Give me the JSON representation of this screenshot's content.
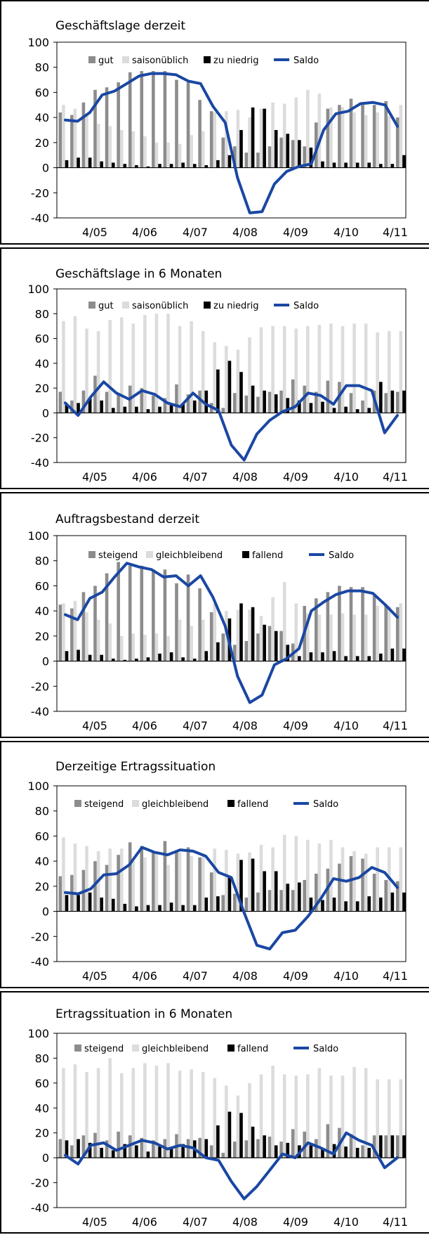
{
  "colors": {
    "s1": "#8c8c8c",
    "s2": "#dcdcdc",
    "s3": "#000000",
    "saldo": "#1a47a3"
  },
  "chart_data": [
    {
      "type": "bar",
      "title": "Geschäftslage derzeit",
      "legend": [
        "gut",
        "saisonüblich",
        "zu niedrig",
        "Saldo"
      ],
      "x_tick_labels": [
        "4/05",
        "4/06",
        "4/07",
        "4/08",
        "4/09",
        "4/10",
        "4/11"
      ],
      "y_tick_labels": [
        "100",
        "80",
        "60",
        "40",
        "20",
        "0",
        "-20",
        "-40"
      ],
      "ylim": [
        -40,
        100
      ],
      "series": [
        {
          "name": "gut",
          "values": [
            44,
            42,
            52,
            62,
            64,
            68,
            76,
            77,
            77,
            77,
            70,
            68,
            54,
            45,
            24,
            17,
            12,
            12,
            17,
            24,
            22,
            17,
            36,
            47,
            50,
            55,
            50,
            50,
            53,
            40
          ]
        },
        {
          "name": "saisonüblich",
          "values": [
            50,
            47,
            43,
            35,
            33,
            30,
            29,
            25,
            20,
            20,
            19,
            26,
            29,
            44,
            45,
            46,
            40,
            47,
            52,
            51,
            56,
            62,
            59,
            48,
            48,
            44,
            42,
            44,
            41,
            50
          ]
        },
        {
          "name": "zu niedrig",
          "values": [
            6,
            8,
            8,
            5,
            4,
            3,
            2,
            1,
            3,
            3,
            4,
            3,
            2,
            6,
            10,
            30,
            48,
            47,
            30,
            27,
            22,
            16,
            5,
            4,
            4,
            4,
            4,
            3,
            3,
            10
          ]
        },
        {
          "name": "Saldo",
          "values": [
            38,
            37,
            44,
            58,
            61,
            67,
            73,
            75,
            75,
            74,
            69,
            67,
            49,
            36,
            -8,
            -36,
            -35,
            -13,
            -3,
            1,
            3,
            30,
            43,
            45,
            51,
            52,
            50,
            33
          ]
        }
      ]
    },
    {
      "type": "bar",
      "title": "Geschäftslage in 6 Monaten",
      "legend": [
        "gut",
        "saisonüblich",
        "zu niedrig",
        "Saldo"
      ],
      "x_tick_labels": [
        "4/05",
        "4/06",
        "4/07",
        "4/08",
        "4/09",
        "4/10",
        "4/11"
      ],
      "y_tick_labels": [
        "100",
        "80",
        "60",
        "40",
        "20",
        "0",
        "-20",
        "-40"
      ],
      "ylim": [
        -40,
        100
      ],
      "series": [
        {
          "name": "gut",
          "values": [
            17,
            10,
            18,
            30,
            17,
            15,
            22,
            20,
            14,
            12,
            23,
            15,
            18,
            8,
            4,
            16,
            14,
            13,
            17,
            18,
            27,
            22,
            17,
            26,
            25,
            16,
            10,
            18,
            16,
            17
          ]
        },
        {
          "name": "saisonüblich",
          "values": [
            74,
            78,
            68,
            66,
            75,
            77,
            72,
            79,
            80,
            80,
            70,
            74,
            66,
            57,
            54,
            51,
            61,
            69,
            70,
            70,
            68,
            70,
            71,
            72,
            70,
            72,
            72,
            65,
            66,
            66
          ]
        },
        {
          "name": "zu niedrig",
          "values": [
            7,
            8,
            12,
            10,
            4,
            5,
            5,
            3,
            5,
            7,
            7,
            10,
            18,
            35,
            42,
            33,
            22,
            18,
            15,
            12,
            10,
            8,
            9,
            4,
            5,
            3,
            4,
            25,
            18,
            18
          ]
        },
        {
          "name": "Saldo",
          "values": [
            8,
            -2,
            13,
            25,
            16,
            11,
            18,
            15,
            8,
            5,
            16,
            7,
            2,
            -26,
            -38,
            -17,
            -6,
            1,
            5,
            16,
            14,
            7,
            22,
            22,
            18,
            -16,
            -2
          ]
        }
      ]
    },
    {
      "type": "bar",
      "title": "Auftragsbestand derzeit",
      "legend": [
        "steigend",
        "gleichbleibend",
        "fallend",
        "Saldo"
      ],
      "x_tick_labels": [
        "4/05",
        "4/06",
        "4/07",
        "4/08",
        "4/09",
        "4/10",
        "4/11"
      ],
      "y_tick_labels": [
        "100",
        "80",
        "60",
        "40",
        "20",
        "0",
        "-20",
        "-40"
      ],
      "ylim": [
        -40,
        100
      ],
      "series": [
        {
          "name": "steigend",
          "values": [
            45,
            42,
            55,
            60,
            70,
            79,
            76,
            76,
            73,
            73,
            62,
            69,
            58,
            39,
            22,
            13,
            16,
            22,
            28,
            24,
            14,
            44,
            50,
            55,
            60,
            59,
            59,
            52,
            45,
            43
          ]
        },
        {
          "name": "gleichbleibend",
          "values": [
            46,
            48,
            39,
            33,
            30,
            20,
            22,
            21,
            22,
            20,
            33,
            28,
            33,
            46,
            40,
            41,
            41,
            36,
            51,
            63,
            46,
            38,
            37,
            37,
            38,
            37,
            37,
            44,
            44,
            46
          ]
        },
        {
          "name": "fallend",
          "values": [
            8,
            9,
            5,
            5,
            2,
            1,
            2,
            3,
            6,
            7,
            3,
            2,
            8,
            15,
            34,
            46,
            43,
            29,
            24,
            13,
            4,
            7,
            7,
            8,
            4,
            4,
            4,
            6,
            10,
            10
          ]
        },
        {
          "name": "Saldo",
          "values": [
            37,
            33,
            50,
            55,
            67,
            78,
            75,
            73,
            67,
            68,
            60,
            68,
            51,
            28,
            -12,
            -33,
            -27,
            -3,
            2,
            10,
            40,
            47,
            53,
            56,
            56,
            54,
            45,
            35
          ]
        }
      ]
    },
    {
      "type": "bar",
      "title": "Derzeitige Ertragssituation",
      "legend": [
        "steigend",
        "gleichbleibend",
        "fallend",
        "Saldo"
      ],
      "x_tick_labels": [
        "4/05",
        "4/06",
        "4/07",
        "4/08",
        "4/09",
        "4/10",
        "4/11"
      ],
      "y_tick_labels": [
        "100",
        "80",
        "60",
        "40",
        "20",
        "0",
        "-20",
        "-40"
      ],
      "ylim": [
        -40,
        100
      ],
      "series": [
        {
          "name": "steigend",
          "values": [
            28,
            29,
            33,
            40,
            37,
            45,
            55,
            52,
            48,
            56,
            48,
            51,
            43,
            31,
            13,
            14,
            11,
            15,
            17,
            17,
            17,
            25,
            30,
            34,
            38,
            44,
            42,
            30,
            25,
            24
          ]
        },
        {
          "name": "gleichbleibend",
          "values": [
            59,
            54,
            52,
            48,
            50,
            50,
            40,
            43,
            46,
            37,
            47,
            44,
            46,
            50,
            49,
            46,
            47,
            53,
            51,
            61,
            60,
            57,
            54,
            57,
            51,
            48,
            46,
            51,
            51,
            51
          ]
        },
        {
          "name": "fallend",
          "values": [
            13,
            13,
            15,
            11,
            10,
            6,
            4,
            5,
            5,
            7,
            5,
            5,
            11,
            12,
            28,
            41,
            42,
            32,
            32,
            22,
            23,
            11,
            9,
            11,
            8,
            8,
            12,
            11,
            15,
            15
          ]
        },
        {
          "name": "Saldo",
          "values": [
            15,
            14,
            18,
            29,
            30,
            37,
            51,
            47,
            45,
            49,
            48,
            44,
            31,
            27,
            -1,
            -27,
            -30,
            -17,
            -15,
            -4,
            10,
            26,
            24,
            27,
            35,
            31,
            19
          ]
        }
      ]
    },
    {
      "type": "bar",
      "title": "Ertragssituation in 6 Monaten",
      "legend": [
        "steigend",
        "gleichbleibend",
        "fallend",
        "Saldo"
      ],
      "x_tick_labels": [
        "4/05",
        "4/06",
        "4/07",
        "4/08",
        "4/09",
        "4/10",
        "4/11"
      ],
      "y_tick_labels": [
        "100",
        "80",
        "60",
        "40",
        "20",
        "0",
        "-20",
        "-40"
      ],
      "ylim": [
        -40,
        100
      ],
      "series": [
        {
          "name": "steigend",
          "values": [
            15,
            10,
            18,
            20,
            14,
            21,
            18,
            16,
            14,
            15,
            19,
            15,
            16,
            10,
            4,
            13,
            14,
            15,
            17,
            13,
            23,
            21,
            15,
            27,
            24,
            19,
            10,
            18,
            18,
            18
          ]
        },
        {
          "name": "gleichbleibend",
          "values": [
            72,
            75,
            69,
            72,
            80,
            68,
            72,
            76,
            74,
            76,
            70,
            71,
            69,
            64,
            58,
            50,
            60,
            67,
            74,
            67,
            66,
            67,
            72,
            66,
            66,
            73,
            72,
            63,
            63,
            63
          ]
        },
        {
          "name": "fallend",
          "values": [
            14,
            15,
            12,
            8,
            6,
            11,
            10,
            5,
            9,
            8,
            11,
            14,
            15,
            26,
            37,
            36,
            25,
            18,
            10,
            12,
            10,
            10,
            7,
            11,
            9,
            8,
            8,
            18,
            18,
            18
          ]
        },
        {
          "name": "Saldo",
          "values": [
            2,
            -5,
            10,
            12,
            6,
            10,
            14,
            12,
            7,
            10,
            8,
            0,
            -2,
            -19,
            -33,
            -23,
            -10,
            3,
            0,
            12,
            8,
            3,
            20,
            14,
            10,
            -8,
            0
          ]
        }
      ]
    }
  ]
}
